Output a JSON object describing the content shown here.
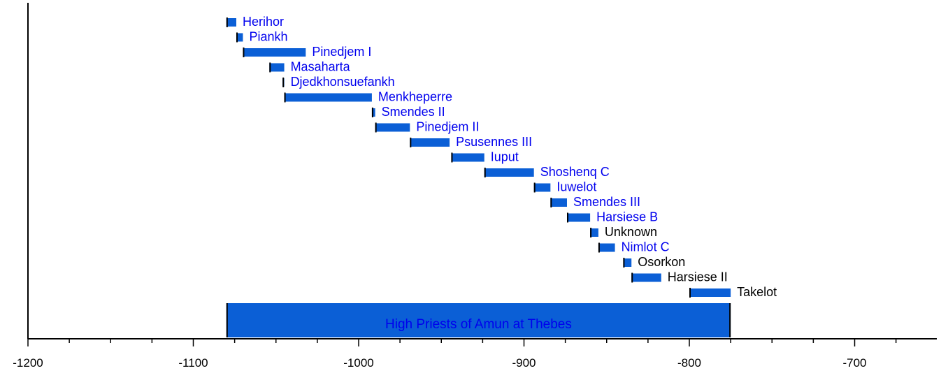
{
  "chart_data": {
    "type": "bar",
    "subtype": "timeline",
    "title": "",
    "xlabel": "",
    "ylabel": "",
    "xlim": [
      -1200,
      -650
    ],
    "x_tick_labels": [
      "-1200",
      "-1100",
      "-1000",
      "-900",
      "-800",
      "-700"
    ],
    "x_ticks": [
      -1200,
      -1100,
      -1000,
      -900,
      -800,
      -700
    ],
    "minor_tick_step": 25,
    "grid": false,
    "colors": {
      "bar": "#0b5fd6",
      "band": "#0b5fd6",
      "link_text": "#0000ee",
      "plain_text": "#000000"
    },
    "series": [
      {
        "name": "Herihor",
        "start": -1080,
        "end": -1074,
        "label_color": "#0000ee"
      },
      {
        "name": "Piankh",
        "start": -1074,
        "end": -1070,
        "label_color": "#0000ee"
      },
      {
        "name": "Pinedjem I",
        "start": -1070,
        "end": -1032,
        "label_color": "#0000ee"
      },
      {
        "name": "Masaharta",
        "start": -1054,
        "end": -1045,
        "label_color": "#0000ee"
      },
      {
        "name": "Djedkhonsuefankh",
        "start": -1046,
        "end": -1045,
        "label_color": "#0000ee"
      },
      {
        "name": "Menkheperre",
        "start": -1045,
        "end": -992,
        "label_color": "#0000ee"
      },
      {
        "name": "Smendes II",
        "start": -992,
        "end": -990,
        "label_color": "#0000ee"
      },
      {
        "name": "Pinedjem II",
        "start": -990,
        "end": -969,
        "label_color": "#0000ee"
      },
      {
        "name": "Psusennes III",
        "start": -969,
        "end": -945,
        "label_color": "#0000ee"
      },
      {
        "name": "Iuput",
        "start": -944,
        "end": -924,
        "label_color": "#0000ee"
      },
      {
        "name": "Shoshenq C",
        "start": -924,
        "end": -894,
        "label_color": "#0000ee"
      },
      {
        "name": "Iuwelot",
        "start": -894,
        "end": -884,
        "label_color": "#0000ee"
      },
      {
        "name": "Smendes III",
        "start": -884,
        "end": -874,
        "label_color": "#0000ee"
      },
      {
        "name": "Harsiese B",
        "start": -874,
        "end": -860,
        "label_color": "#0000ee"
      },
      {
        "name": "Unknown",
        "start": -860,
        "end": -855,
        "label_color": "#000000"
      },
      {
        "name": "Nimlot C",
        "start": -855,
        "end": -845,
        "label_color": "#0000ee"
      },
      {
        "name": "Osorkon",
        "start": -840,
        "end": -835,
        "label_color": "#000000"
      },
      {
        "name": "Harsiese II",
        "start": -835,
        "end": -817,
        "label_color": "#000000"
      },
      {
        "name": "Takelot",
        "start": -800,
        "end": -775,
        "label_color": "#000000"
      }
    ],
    "band": {
      "label": "High Priests of Amun at Thebes",
      "start": -1080,
      "end": -775,
      "text_color": "#0000ee"
    }
  }
}
